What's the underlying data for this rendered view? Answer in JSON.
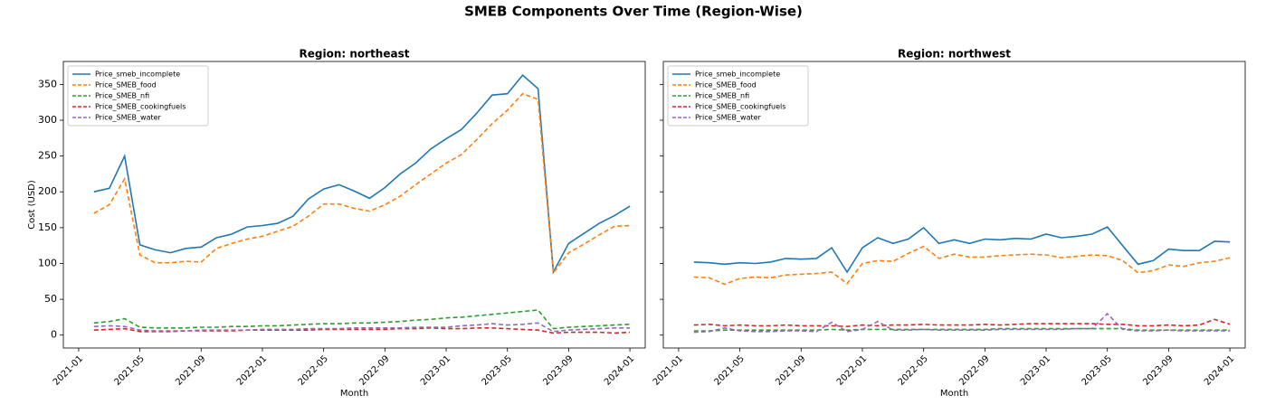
{
  "title": "SMEB Components Over Time (Region-Wise)",
  "chart_data": [
    {
      "type": "line",
      "title": "Region: northeast",
      "xlabel": "Month",
      "ylabel": "Cost (USD)",
      "x": [
        "2021-02",
        "2021-03",
        "2021-04",
        "2021-05",
        "2021-06",
        "2021-07",
        "2021-08",
        "2021-09",
        "2021-10",
        "2021-11",
        "2021-12",
        "2022-01",
        "2022-02",
        "2022-03",
        "2022-04",
        "2022-05",
        "2022-06",
        "2022-07",
        "2022-08",
        "2022-09",
        "2022-10",
        "2022-11",
        "2022-12",
        "2023-01",
        "2023-02",
        "2023-03",
        "2023-04",
        "2023-05",
        "2023-06",
        "2023-07",
        "2023-08",
        "2023-09",
        "2023-10",
        "2023-11",
        "2023-12",
        "2024-01"
      ],
      "xlim": [
        "2020-12",
        "2024-02"
      ],
      "xticks": [
        "2021-01",
        "2021-05",
        "2021-09",
        "2022-01",
        "2022-05",
        "2022-09",
        "2023-01",
        "2023-05",
        "2023-09",
        "2024-01"
      ],
      "ylim": [
        -18,
        382
      ],
      "yticks": [
        0,
        50,
        100,
        150,
        200,
        250,
        300,
        350
      ],
      "legend": "upper left",
      "series": [
        {
          "name": "Price_smeb_incomplete",
          "color": "#1f77b4",
          "linestyle": "solid",
          "values": [
            200,
            205,
            250,
            126,
            119,
            115,
            121,
            123,
            136,
            141,
            151,
            153,
            156,
            166,
            190,
            204,
            210,
            201,
            191,
            206,
            225,
            240,
            260,
            274,
            287,
            310,
            335,
            337,
            363,
            344,
            88,
            128,
            142,
            156,
            167,
            180
          ]
        },
        {
          "name": "Price_SMEB_food",
          "color": "#ff7f0e",
          "linestyle": "dashed",
          "values": [
            170,
            182,
            218,
            112,
            101,
            101,
            103,
            102,
            121,
            128,
            134,
            138,
            145,
            152,
            166,
            183,
            183,
            177,
            173,
            182,
            194,
            210,
            225,
            240,
            252,
            273,
            295,
            314,
            337,
            329,
            87,
            115,
            127,
            140,
            152,
            153
          ]
        },
        {
          "name": "Price_SMEB_nfi",
          "color": "#2ca02c",
          "linestyle": "dashed",
          "values": [
            17,
            19,
            23,
            11,
            10,
            10,
            10,
            11,
            11,
            12,
            12,
            13,
            13,
            14,
            15,
            16,
            16,
            17,
            17,
            18,
            19,
            21,
            22,
            24,
            25,
            27,
            29,
            31,
            33,
            35,
            9,
            11,
            12,
            13,
            14,
            15
          ]
        },
        {
          "name": "Price_SMEB_cookingfuels",
          "color": "#d62728",
          "linestyle": "dashed",
          "values": [
            7,
            8,
            9,
            5,
            5,
            5,
            6,
            6,
            6,
            6,
            7,
            7,
            7,
            7,
            7,
            8,
            8,
            8,
            8,
            8,
            9,
            9,
            10,
            9,
            9,
            10,
            10,
            9,
            8,
            7,
            3,
            4,
            4,
            4,
            3,
            4
          ]
        },
        {
          "name": "Price_SMEB_water",
          "color": "#9467bd",
          "linestyle": "dashed",
          "values": [
            12,
            13,
            12,
            7,
            6,
            6,
            6,
            7,
            7,
            7,
            7,
            8,
            8,
            8,
            9,
            9,
            9,
            10,
            10,
            10,
            10,
            11,
            11,
            11,
            13,
            14,
            16,
            14,
            15,
            17,
            5,
            7,
            8,
            9,
            10,
            10
          ]
        }
      ]
    },
    {
      "type": "line",
      "title": "Region: northwest",
      "xlabel": "Month",
      "x": [
        "2021-02",
        "2021-03",
        "2021-04",
        "2021-05",
        "2021-06",
        "2021-07",
        "2021-08",
        "2021-09",
        "2021-10",
        "2021-11",
        "2021-12",
        "2022-01",
        "2022-02",
        "2022-03",
        "2022-04",
        "2022-05",
        "2022-06",
        "2022-07",
        "2022-08",
        "2022-09",
        "2022-10",
        "2022-11",
        "2022-12",
        "2023-01",
        "2023-02",
        "2023-03",
        "2023-04",
        "2023-05",
        "2023-06",
        "2023-07",
        "2023-08",
        "2023-09",
        "2023-10",
        "2023-11",
        "2023-12",
        "2024-01"
      ],
      "xlim": [
        "2020-12",
        "2024-02"
      ],
      "xticks": [
        "2021-01",
        "2021-05",
        "2021-09",
        "2022-01",
        "2022-05",
        "2022-09",
        "2023-01",
        "2023-05",
        "2023-09",
        "2024-01"
      ],
      "ylim": [
        -18,
        382
      ],
      "yticks": [
        0,
        50,
        100,
        150,
        200,
        250,
        300,
        350
      ],
      "legend": "upper left",
      "series": [
        {
          "name": "Price_smeb_incomplete",
          "color": "#1f77b4",
          "linestyle": "solid",
          "values": [
            102,
            101,
            99,
            101,
            100,
            102,
            107,
            106,
            107,
            122,
            88,
            122,
            136,
            128,
            134,
            150,
            128,
            133,
            128,
            134,
            133,
            135,
            134,
            141,
            136,
            138,
            141,
            151,
            125,
            99,
            104,
            120,
            118,
            118,
            131,
            130
          ]
        },
        {
          "name": "Price_SMEB_food",
          "color": "#ff7f0e",
          "linestyle": "dashed",
          "values": [
            81,
            80,
            71,
            79,
            81,
            80,
            84,
            85,
            86,
            88,
            72,
            100,
            104,
            103,
            114,
            124,
            107,
            113,
            109,
            109,
            111,
            112,
            113,
            112,
            108,
            110,
            112,
            111,
            104,
            87,
            90,
            98,
            96,
            101,
            103,
            108
          ]
        },
        {
          "name": "Price_SMEB_nfi",
          "color": "#2ca02c",
          "linestyle": "dashed",
          "values": [
            6,
            6,
            7,
            7,
            7,
            7,
            7,
            7,
            7,
            8,
            7,
            8,
            8,
            8,
            8,
            8,
            8,
            8,
            8,
            8,
            9,
            9,
            9,
            9,
            9,
            9,
            9,
            9,
            9,
            7,
            7,
            7,
            7,
            7,
            7,
            7
          ]
        },
        {
          "name": "Price_SMEB_cookingfuels",
          "color": "#d62728",
          "linestyle": "dashed",
          "values": [
            14,
            15,
            13,
            14,
            13,
            13,
            14,
            13,
            13,
            13,
            12,
            14,
            13,
            14,
            14,
            15,
            14,
            14,
            14,
            15,
            14,
            15,
            16,
            16,
            16,
            16,
            16,
            15,
            15,
            13,
            13,
            14,
            13,
            14,
            22,
            15
          ]
        },
        {
          "name": "Price_SMEB_water",
          "color": "#9467bd",
          "linestyle": "dashed",
          "values": [
            4,
            5,
            10,
            6,
            5,
            5,
            6,
            6,
            5,
            18,
            5,
            8,
            19,
            7,
            7,
            8,
            7,
            7,
            7,
            7,
            8,
            8,
            8,
            8,
            8,
            9,
            9,
            30,
            8,
            6,
            6,
            7,
            6,
            6,
            6,
            6
          ]
        }
      ]
    }
  ]
}
